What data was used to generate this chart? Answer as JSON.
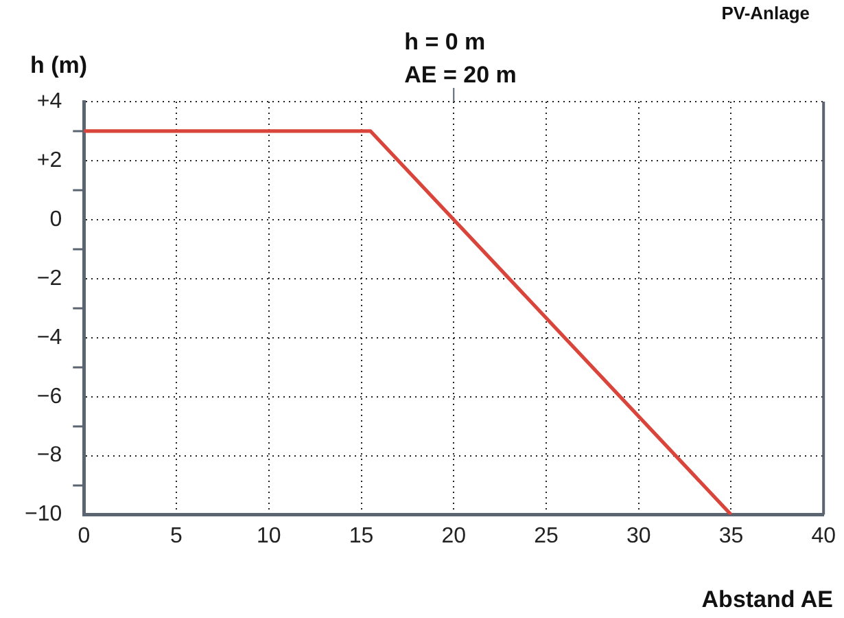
{
  "chart_data": {
    "type": "line",
    "xlabel": "Abstand AE",
    "ylabel": "h (m)",
    "x": [
      0,
      15.5,
      35
    ],
    "series": [
      {
        "color": "#d9453a",
        "values": [
          3,
          3,
          -10
        ]
      }
    ],
    "xlim": [
      0,
      40
    ],
    "xticks": [
      0,
      5,
      10,
      15,
      20,
      25,
      30,
      35,
      40
    ],
    "ylim": [
      -10,
      4
    ],
    "yticks": [
      {
        "value": -10,
        "label": "−10"
      },
      {
        "value": -9,
        "label": null
      },
      {
        "value": -8,
        "label": "−8"
      },
      {
        "value": -7,
        "label": null
      },
      {
        "value": -6,
        "label": "−6"
      },
      {
        "value": -5,
        "label": null
      },
      {
        "value": -4,
        "label": "−4"
      },
      {
        "value": -3,
        "label": null
      },
      {
        "value": -2,
        "label": "−2"
      },
      {
        "value": -1,
        "label": null
      },
      0,
      {
        "value": 1,
        "label": null
      },
      {
        "value": 2,
        "label": "+2"
      },
      {
        "value": 3,
        "label": null
      },
      {
        "value": 4,
        "label": "+4"
      }
    ],
    "grid": true,
    "marker": "none",
    "line_style": "solid",
    "legend": false,
    "annotations": [
      "h = 0 m\nAE = 20 m",
      "PV-Anlage"
    ]
  }
}
